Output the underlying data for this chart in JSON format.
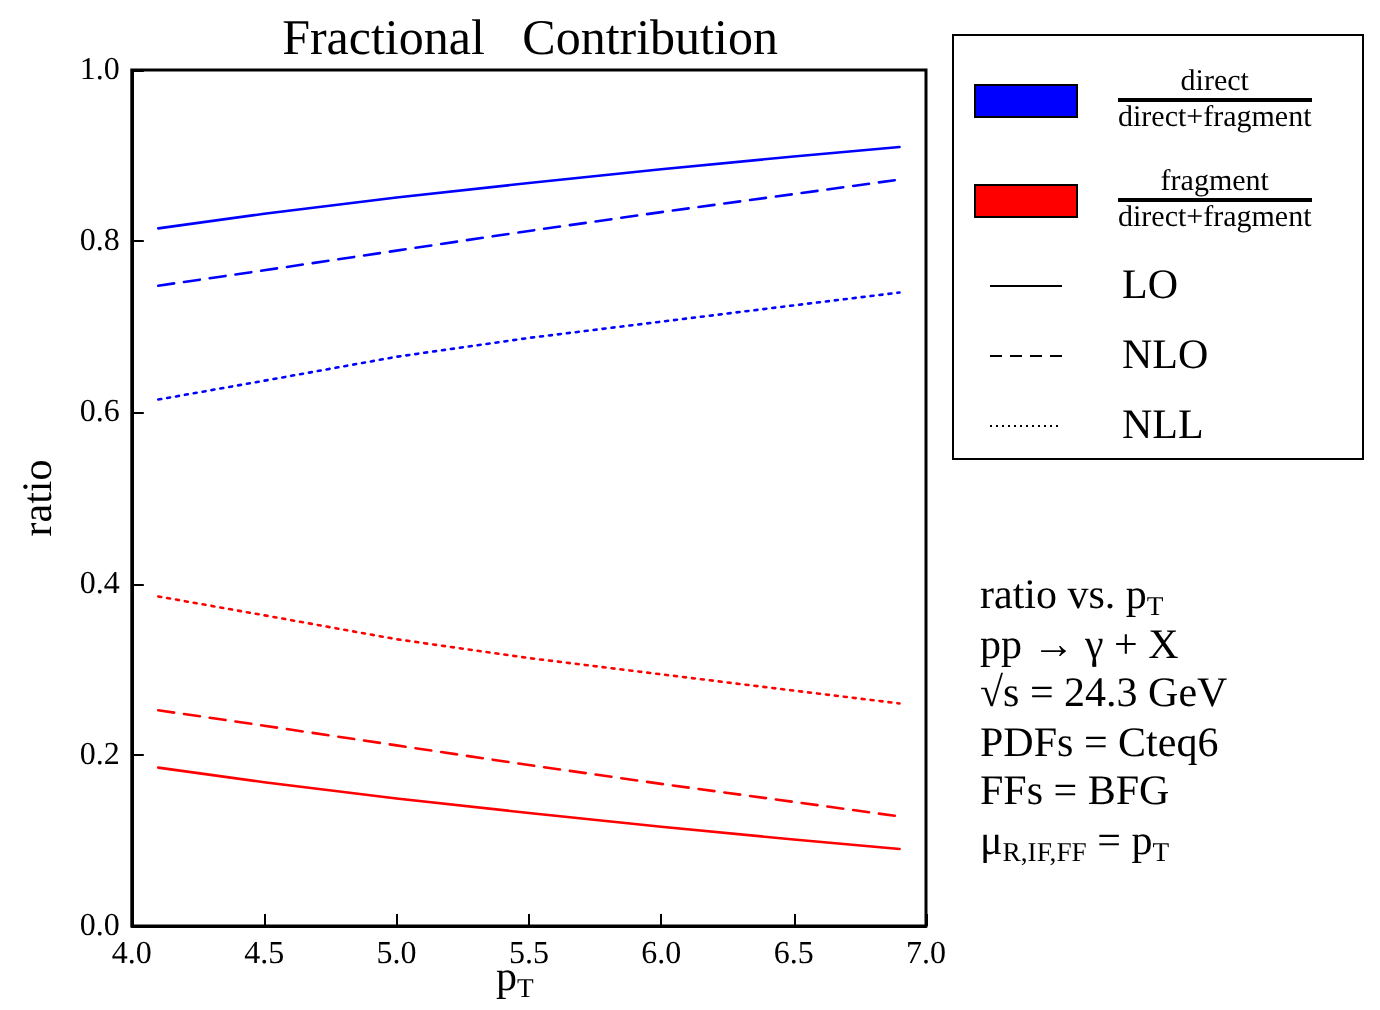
{
  "chart_data": {
    "type": "line",
    "title": "Fractional   Contribution",
    "xlabel": "p$_{T}$",
    "ylabel": "ratio",
    "x": [
      4.1,
      4.5,
      5.0,
      5.5,
      6.0,
      6.5,
      6.9
    ],
    "xlim": [
      4.0,
      7.0
    ],
    "ylim": [
      0.0,
      1.0
    ],
    "xticks": [
      {
        "value": 4.0,
        "label": "4.0"
      },
      {
        "value": 4.5,
        "label": "4.5"
      },
      {
        "value": 5.0,
        "label": "5.0"
      },
      {
        "value": 5.5,
        "label": "5.5"
      },
      {
        "value": 6.0,
        "label": "6.0"
      },
      {
        "value": 6.5,
        "label": "6.5"
      },
      {
        "value": 7.0,
        "label": "7.0"
      }
    ],
    "yticks": [
      {
        "value": 0.0,
        "label": "0.0"
      },
      {
        "value": 0.2,
        "label": "0.2"
      },
      {
        "value": 0.4,
        "label": "0.4"
      },
      {
        "value": 0.6,
        "label": "0.6"
      },
      {
        "value": 0.8,
        "label": "0.8"
      },
      {
        "value": 1.0,
        "label": "1.0"
      }
    ],
    "series": [
      {
        "color": "#0000ff",
        "line_style": "solid",
        "values": [
          0.815,
          0.832,
          0.851,
          0.868,
          0.884,
          0.899,
          0.91
        ]
      },
      {
        "color": "#0000ff",
        "line_style": "dashed",
        "values": [
          0.748,
          0.766,
          0.789,
          0.812,
          0.834,
          0.855,
          0.872
        ]
      },
      {
        "color": "#0000ff",
        "line_style": "dotted",
        "values": [
          0.615,
          0.637,
          0.665,
          0.687,
          0.706,
          0.725,
          0.74
        ]
      },
      {
        "color": "#ff0000",
        "line_style": "solid",
        "values": [
          0.185,
          0.168,
          0.149,
          0.132,
          0.116,
          0.101,
          0.09
        ]
      },
      {
        "color": "#ff0000",
        "line_style": "dashed",
        "values": [
          0.252,
          0.234,
          0.211,
          0.188,
          0.166,
          0.145,
          0.128
        ]
      },
      {
        "color": "#ff0000",
        "line_style": "dotted",
        "values": [
          0.385,
          0.363,
          0.335,
          0.313,
          0.294,
          0.275,
          0.26
        ]
      }
    ],
    "grid": false,
    "marker": "none",
    "annotations": [
      "direct",
      "direct+fragment",
      "fragment",
      "direct+fragment",
      "LO",
      "NLO",
      "NLL",
      "ratio  vs.  p$_{T}$",
      "pp → γ + X",
      "√s = 24.3 GeV",
      "PDFs = Cteq6",
      "FFs = BFG",
      "μ$_{R,IF,FF}$ = p$_{T}$"
    ]
  }
}
